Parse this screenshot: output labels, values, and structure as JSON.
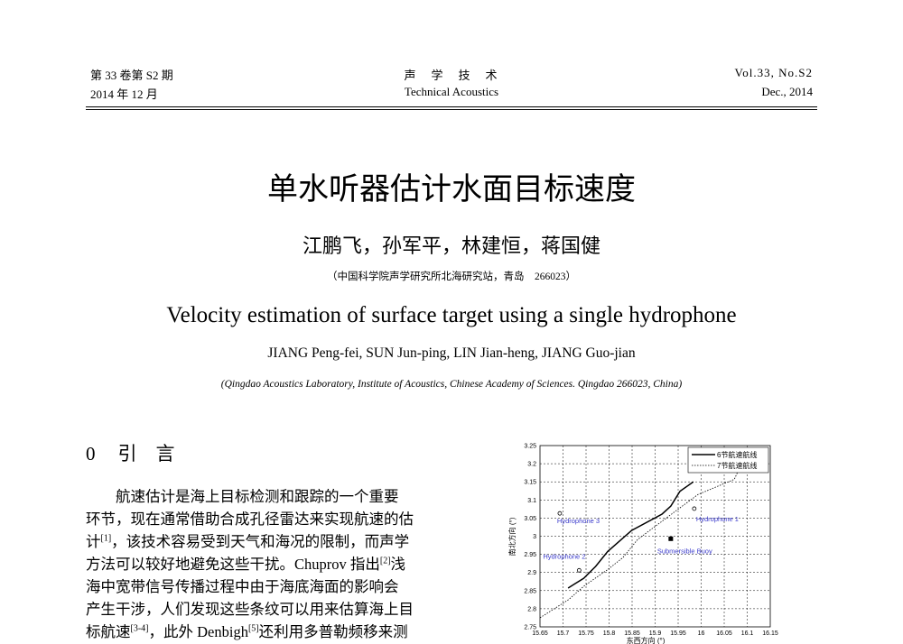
{
  "header": {
    "left_line1": "第 33 卷第 S2 期",
    "left_line2": "2014 年 12 月",
    "center_line1": "声　学　技　术",
    "center_line2": "Technical Acoustics",
    "right_line1": "Vol.33, No.S2",
    "right_line2": "Dec., 2014"
  },
  "title_cn": "单水听器估计水面目标速度",
  "authors_cn": "江鹏飞，孙军平，林建恒，蒋国健",
  "affiliation_cn": "（中国科学院声学研究所北海研究站，青岛　266023）",
  "title_en": "Velocity estimation of surface target using a single hydrophone",
  "authors_en": "JIANG Peng-fei, SUN Jun-ping, LIN Jian-heng, JIANG Guo-jian",
  "affiliation_en": "(Qingdao Acoustics Laboratory, Institute of Acoustics, Chinese Academy of Sciences. Qingdao 266023, China)",
  "section": {
    "number": "0",
    "title": "引　言"
  },
  "body_lines": [
    [
      "　　航速估计是海上目标检测和跟踪的一个重要",
      "",
      ""
    ],
    [
      "环节，现在通常借助合成孔径雷达来实现航速的估",
      "",
      ""
    ],
    [
      "计",
      "[1]",
      "，该技术容易受到天气和海况的限制，而声学"
    ],
    [
      "方法可以较好地避免这些干扰。Chuprov 指出",
      "[2]",
      "浅"
    ],
    [
      "海中宽带信号传播过程中由于海底海面的影响会",
      "",
      ""
    ],
    [
      "产生干涉，人们发现这些条纹可以用来估算海上目",
      "",
      ""
    ],
    [
      "标航速",
      "[3-4]",
      "，此外 Denbigh"
    ],
    [
      "",
      "[5]",
      "还利用多普勒频移来测"
    ]
  ],
  "chart_data": {
    "type": "line",
    "xlabel": "东西方向 (°)",
    "ylabel": "南北方向 (°)",
    "xlim": [
      15.65,
      16.15
    ],
    "ylim": [
      2.75,
      3.25
    ],
    "xticks": [
      "15.65",
      "15.7",
      "15.75",
      "15.8",
      "15.85",
      "15.9",
      "15.95",
      "16",
      "16.05",
      "16.1",
      "16.15"
    ],
    "yticks": [
      "2.75",
      "2.8",
      "2.85",
      "2.9",
      "2.95",
      "3",
      "3.05",
      "3.1",
      "3.15",
      "3.2",
      "3.25"
    ],
    "grid": true,
    "legend_position": "top-right",
    "series": [
      {
        "name": "6节航速航线",
        "style": "solid",
        "x": [
          15.711,
          15.745,
          15.771,
          15.797,
          15.849,
          15.915,
          15.934,
          15.954,
          15.983
        ],
        "y": [
          2.857,
          2.884,
          2.917,
          2.958,
          3.016,
          3.061,
          3.083,
          3.124,
          3.15
        ]
      },
      {
        "name": "7节航速航线",
        "style": "dotted",
        "x": [
          15.65,
          15.712,
          15.745,
          15.797,
          15.83,
          15.862,
          15.941,
          15.993,
          16.072,
          16.081
        ],
        "y": [
          2.775,
          2.825,
          2.862,
          2.908,
          2.941,
          2.991,
          3.066,
          3.115,
          3.157,
          3.182
        ]
      }
    ],
    "points": [
      {
        "label": "Hydrophone 3",
        "x": 15.693,
        "y": 3.063,
        "marker": "circle"
      },
      {
        "label": "Hydrophone 2",
        "x": 15.735,
        "y": 2.906,
        "marker": "circle"
      },
      {
        "label": "Hydrophone 1",
        "x": 15.985,
        "y": 3.076,
        "marker": "circle"
      },
      {
        "label": "Submersible Buoy",
        "x": 15.934,
        "y": 2.993,
        "marker": "square"
      }
    ],
    "label_color": "#3a3acc"
  }
}
